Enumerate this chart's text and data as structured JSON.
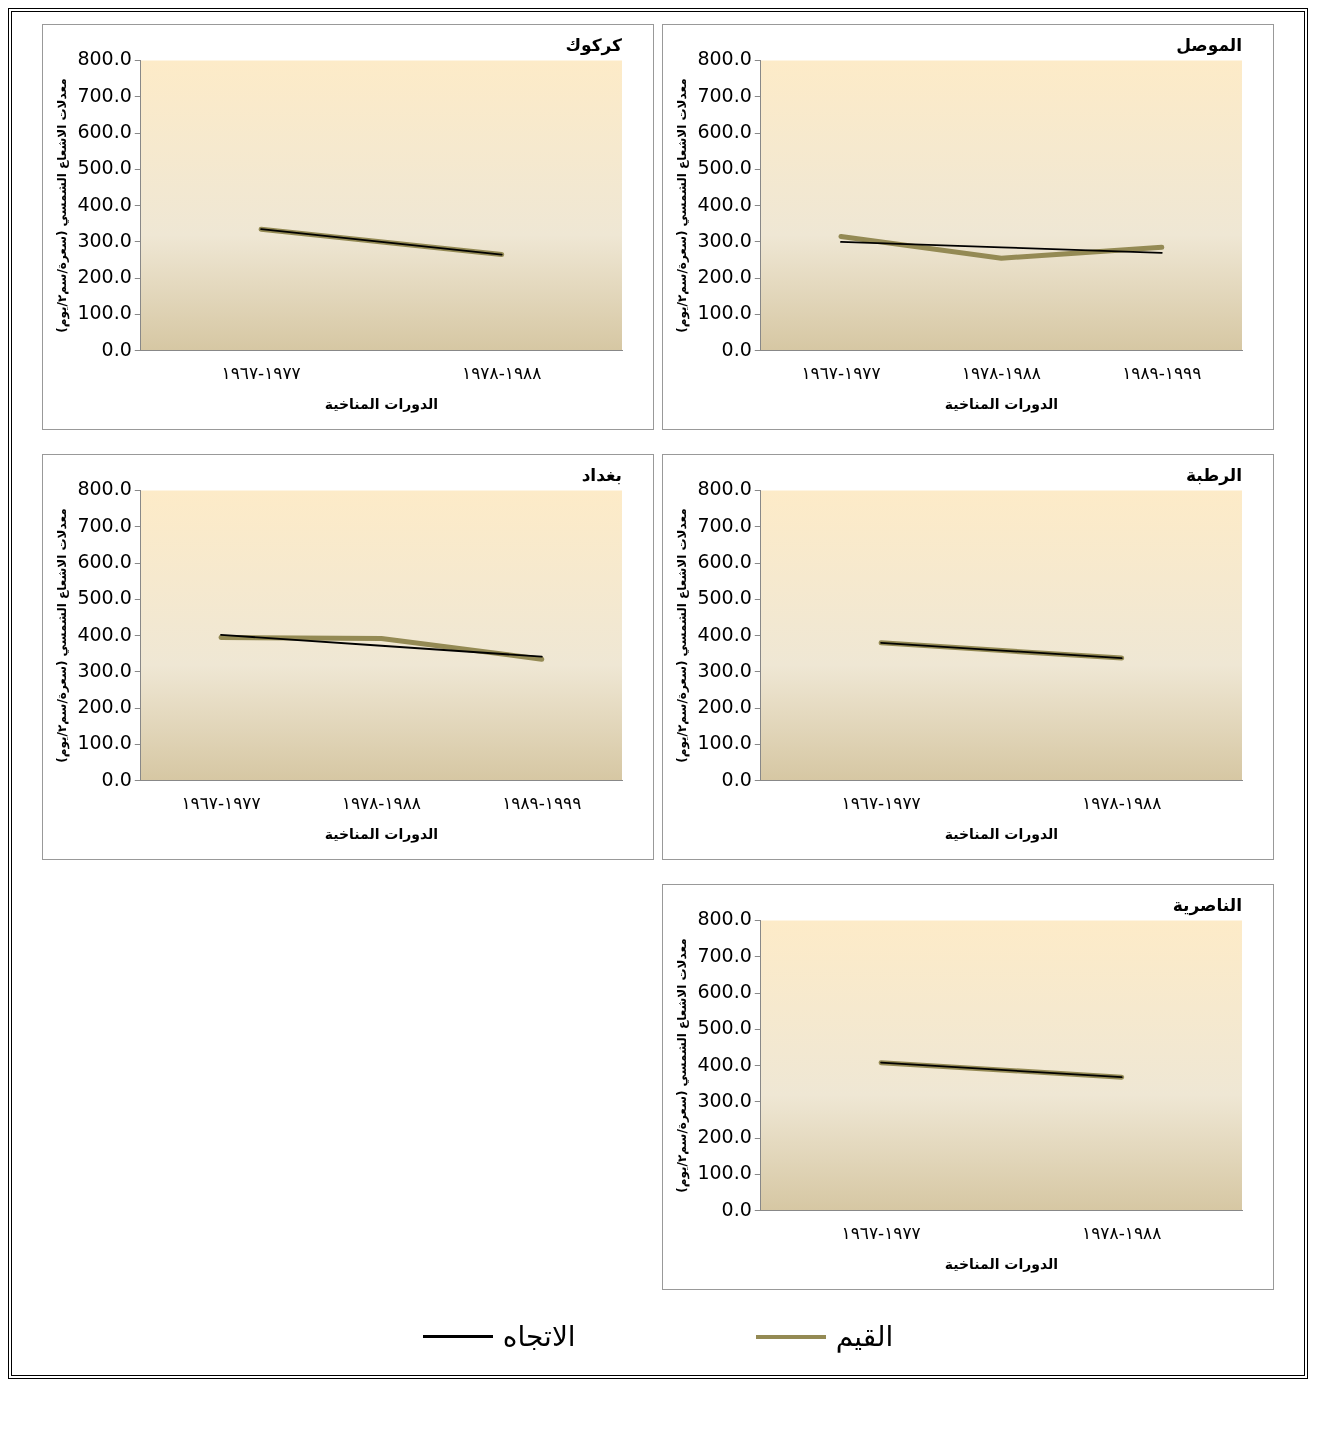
{
  "chart_data": [
    {
      "type": "line",
      "title": "الموصل",
      "xlabel": "الدورات المناخية",
      "ylabel": "معدلات الاشعاع الشمسي (سعرة/سم٢/يوم)",
      "categories": [
        "١٩٦٧-١٩٧٧",
        "١٩٧٨-١٩٨٨",
        "١٩٨٩-١٩٩٩"
      ],
      "ylim": [
        0,
        800
      ],
      "yticks": [
        {
          "value": 0,
          "label": "0.0"
        },
        {
          "value": 100,
          "label": "100.0"
        },
        {
          "value": 200,
          "label": "200.0"
        },
        {
          "value": 300,
          "label": "300.0"
        },
        {
          "value": 400,
          "label": "400.0"
        },
        {
          "value": 500,
          "label": "500.0"
        },
        {
          "value": 600,
          "label": "600.0"
        },
        {
          "value": 700,
          "label": "700.0"
        },
        {
          "value": 800,
          "label": "800.0"
        }
      ],
      "grid": false,
      "legend": "bottom",
      "marker": "none",
      "series": [
        {
          "name": "القيم",
          "color": "#948a54",
          "values": [
            315,
            255,
            285
          ]
        },
        {
          "name": "الاتجاه",
          "color": "#000000",
          "values": [
            300,
            285,
            270
          ]
        }
      ]
    },
    {
      "type": "line",
      "title": "كركوك",
      "xlabel": "الدورات المناخية",
      "ylabel": "معدلات الاشعاع الشمسي (سعرة/سم٢/يوم)",
      "categories": [
        "١٩٦٧-١٩٧٧",
        "١٩٧٨-١٩٨٨"
      ],
      "ylim": [
        0,
        800
      ],
      "yticks": [
        {
          "value": 0,
          "label": "0.0"
        },
        {
          "value": 100,
          "label": "100.0"
        },
        {
          "value": 200,
          "label": "200.0"
        },
        {
          "value": 300,
          "label": "300.0"
        },
        {
          "value": 400,
          "label": "400.0"
        },
        {
          "value": 500,
          "label": "500.0"
        },
        {
          "value": 600,
          "label": "600.0"
        },
        {
          "value": 700,
          "label": "700.0"
        },
        {
          "value": 800,
          "label": "800.0"
        }
      ],
      "grid": false,
      "marker": "none",
      "series": [
        {
          "color": "#948a54",
          "values": [
            335,
            265
          ]
        },
        {
          "color": "#000000",
          "values": [
            335,
            265
          ]
        }
      ]
    },
    {
      "type": "line",
      "title": "الرطبة",
      "xlabel": "الدورات المناخية",
      "ylabel": "معدلات الاشعاع الشمسي (سعرة/سم٢/يوم)",
      "categories": [
        "١٩٦٧-١٩٧٧",
        "١٩٧٨-١٩٨٨"
      ],
      "ylim": [
        0,
        800
      ],
      "yticks": [
        {
          "value": 0,
          "label": "0.0"
        },
        {
          "value": 100,
          "label": "100.0"
        },
        {
          "value": 200,
          "label": "200.0"
        },
        {
          "value": 300,
          "label": "300.0"
        },
        {
          "value": 400,
          "label": "400.0"
        },
        {
          "value": 500,
          "label": "500.0"
        },
        {
          "value": 600,
          "label": "600.0"
        },
        {
          "value": 700,
          "label": "700.0"
        },
        {
          "value": 800,
          "label": "800.0"
        }
      ],
      "grid": false,
      "marker": "none",
      "series": [
        {
          "color": "#948a54",
          "values": [
            380,
            338
          ]
        },
        {
          "color": "#000000",
          "values": [
            380,
            338
          ]
        }
      ]
    },
    {
      "type": "line",
      "title": "بغداد",
      "xlabel": "الدورات المناخية",
      "ylabel": "معدلات الاشعاع الشمسي (سعرة/سم٢/يوم)",
      "categories": [
        "١٩٦٧-١٩٧٧",
        "١٩٧٨-١٩٨٨",
        "١٩٨٩-١٩٩٩"
      ],
      "ylim": [
        0,
        800
      ],
      "yticks": [
        {
          "value": 0,
          "label": "0.0"
        },
        {
          "value": 100,
          "label": "100.0"
        },
        {
          "value": 200,
          "label": "200.0"
        },
        {
          "value": 300,
          "label": "300.0"
        },
        {
          "value": 400,
          "label": "400.0"
        },
        {
          "value": 500,
          "label": "500.0"
        },
        {
          "value": 600,
          "label": "600.0"
        },
        {
          "value": 700,
          "label": "700.0"
        },
        {
          "value": 800,
          "label": "800.0"
        }
      ],
      "grid": false,
      "marker": "none",
      "series": [
        {
          "color": "#948a54",
          "values": [
            395,
            392,
            335
          ]
        },
        {
          "color": "#000000",
          "values": [
            402,
            372,
            342
          ]
        }
      ]
    },
    {
      "type": "line",
      "title": "الناصرية",
      "xlabel": "الدورات المناخية",
      "ylabel": "معدلات الاشعاع الشمسي (سعرة/سم٢/يوم)",
      "categories": [
        "١٩٦٧-١٩٧٧",
        "١٩٧٨-١٩٨٨"
      ],
      "ylim": [
        0,
        800
      ],
      "yticks": [
        {
          "value": 0,
          "label": "0.0"
        },
        {
          "value": 100,
          "label": "100.0"
        },
        {
          "value": 200,
          "label": "200.0"
        },
        {
          "value": 300,
          "label": "300.0"
        },
        {
          "value": 400,
          "label": "400.0"
        },
        {
          "value": 500,
          "label": "500.0"
        },
        {
          "value": 600,
          "label": "600.0"
        },
        {
          "value": 700,
          "label": "700.0"
        },
        {
          "value": 800,
          "label": "800.0"
        }
      ],
      "grid": false,
      "marker": "none",
      "series": [
        {
          "color": "#948a54",
          "values": [
            408,
            368
          ]
        },
        {
          "color": "#000000",
          "values": [
            408,
            368
          ]
        }
      ]
    }
  ]
}
